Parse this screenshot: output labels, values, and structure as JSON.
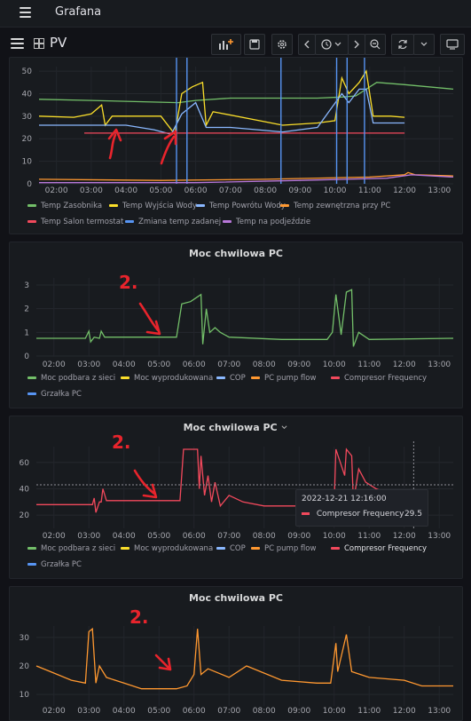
{
  "app": {
    "title": "Grafana"
  },
  "dashboard": {
    "title": "PV"
  },
  "toolbar": {
    "add_panel": "add-panel-icon",
    "save": "save-icon",
    "settings": "gear-icon",
    "time_back": "chevron-left-icon",
    "time_picker": "clock-icon",
    "time_fwd": "chevron-right-icon",
    "zoom_out": "zoom-out-icon",
    "refresh": "refresh-icon",
    "refresh_menu": "chevron-down-icon",
    "tv": "tv-icon"
  },
  "x_ticks": [
    "02:00",
    "03:00",
    "04:00",
    "05:00",
    "06:00",
    "07:00",
    "08:00",
    "09:00",
    "10:00",
    "11:00",
    "12:00",
    "13:00"
  ],
  "panel1": {
    "y_ticks": [
      "0",
      "10",
      "20",
      "30",
      "40",
      "50"
    ],
    "legend": [
      {
        "label": "Temp Zasobnika",
        "color": "#73bf69"
      },
      {
        "label": "Temp Wyjścia Wody",
        "color": "#fade2a"
      },
      {
        "label": "Temp Powrótu Wody",
        "color": "#8ab8ff"
      },
      {
        "label": "Temp zewnętrzna przy PC",
        "color": "#ff9830"
      },
      {
        "label": "Temp Salon termostat",
        "color": "#f2495c"
      },
      {
        "label": "Zmiana temp zadanej",
        "color": "#5794f2"
      },
      {
        "label": "Temp na podjeździe",
        "color": "#b877d9"
      }
    ]
  },
  "panel2": {
    "title": "Moc chwilowa PC",
    "y_ticks": [
      "0",
      "1",
      "2",
      "3"
    ],
    "legend": [
      {
        "label": "Moc podbara z sieci",
        "color": "#73bf69"
      },
      {
        "label": "Moc wyprodukowana",
        "color": "#fade2a"
      },
      {
        "label": "COP",
        "color": "#8ab8ff"
      },
      {
        "label": "PC pump flow",
        "color": "#ff9830"
      },
      {
        "label": "Compresor Frequency",
        "color": "#f2495c"
      },
      {
        "label": "Grzałka PC",
        "color": "#5794f2"
      }
    ]
  },
  "panel3": {
    "title": "Moc chwilowa PC",
    "title_menu_icon": "chevron-down-icon",
    "y_ticks": [
      "20",
      "40",
      "60"
    ],
    "legend": [
      {
        "label": "Moc podbara z sieci",
        "color": "#73bf69"
      },
      {
        "label": "Moc wyprodukowana",
        "color": "#fade2a"
      },
      {
        "label": "COP",
        "color": "#8ab8ff"
      },
      {
        "label": "PC pump flow",
        "color": "#ff9830"
      },
      {
        "label": "Compresor Frequency",
        "color": "#f2495c"
      },
      {
        "label": "Grzałka PC",
        "color": "#5794f2"
      }
    ],
    "tooltip": {
      "time": "2022-12-21 12:16:00",
      "series": "Compresor Frequency",
      "value": "29.5",
      "color": "#f2495c"
    }
  },
  "panel4": {
    "title": "Moc chwilowa PC",
    "y_ticks": [
      "10",
      "20",
      "30"
    ]
  },
  "annotations": {
    "note": "2."
  },
  "chart_data": [
    {
      "type": "line",
      "panel": "panel1",
      "ylim": [
        0,
        52
      ],
      "x": [
        "01:30",
        "13:30"
      ],
      "series": [
        {
          "name": "Temp Zasobnika",
          "color": "#73bf69",
          "points": [
            [
              1.5,
              37.5
            ],
            [
              3.0,
              37
            ],
            [
              5.5,
              36
            ],
            [
              6.0,
              37
            ],
            [
              7.0,
              38
            ],
            [
              8.0,
              38
            ],
            [
              9.5,
              38
            ],
            [
              10.2,
              38.5
            ],
            [
              10.6,
              39
            ],
            [
              11.2,
              45
            ],
            [
              12.0,
              44
            ],
            [
              13.4,
              42
            ]
          ]
        },
        {
          "name": "Temp Wyjścia Wody",
          "color": "#fade2a",
          "points": [
            [
              1.5,
              30
            ],
            [
              2.5,
              29.5
            ],
            [
              3.0,
              31
            ],
            [
              3.3,
              35
            ],
            [
              3.4,
              26
            ],
            [
              3.6,
              30
            ],
            [
              5.0,
              30
            ],
            [
              5.4,
              22
            ],
            [
              5.6,
              40
            ],
            [
              5.9,
              43
            ],
            [
              6.2,
              45
            ],
            [
              6.3,
              26
            ],
            [
              6.5,
              32
            ],
            [
              8.5,
              26
            ],
            [
              9.5,
              27
            ],
            [
              10.0,
              28
            ],
            [
              10.2,
              47
            ],
            [
              10.4,
              40
            ],
            [
              10.7,
              45
            ],
            [
              10.9,
              50
            ],
            [
              11.1,
              30
            ],
            [
              11.6,
              30
            ],
            [
              12.0,
              29.5
            ]
          ]
        },
        {
          "name": "Temp Powrótu Wody",
          "color": "#8ab8ff",
          "points": [
            [
              1.5,
              26
            ],
            [
              3.0,
              26
            ],
            [
              4.0,
              26
            ],
            [
              4.8,
              24
            ],
            [
              5.3,
              22
            ],
            [
              5.6,
              31
            ],
            [
              6.0,
              36
            ],
            [
              6.3,
              25
            ],
            [
              7.0,
              25
            ],
            [
              8.5,
              23
            ],
            [
              9.5,
              25
            ],
            [
              10.2,
              40
            ],
            [
              10.4,
              36
            ],
            [
              10.7,
              42
            ],
            [
              10.9,
              42
            ],
            [
              11.1,
              27
            ],
            [
              12.0,
              27
            ]
          ]
        },
        {
          "name": "Temp zewnętrzna przy PC",
          "color": "#ff9830",
          "points": [
            [
              1.5,
              2
            ],
            [
              5.0,
              1.5
            ],
            [
              8.0,
              2
            ],
            [
              11.0,
              3
            ],
            [
              12.0,
              4
            ],
            [
              12.1,
              5
            ],
            [
              12.3,
              4
            ],
            [
              13.4,
              3.5
            ]
          ]
        },
        {
          "name": "Temp Salon termostat",
          "color": "#f2495c",
          "points": [
            [
              2.8,
              22.5
            ],
            [
              12.0,
              22.5
            ]
          ]
        },
        {
          "name": "Zmiana temp zadanej",
          "color": "#5794f2",
          "spikes": [
            5.45,
            5.75,
            8.45,
            10.05,
            10.35,
            10.85
          ]
        },
        {
          "name": "Temp na podjeździe",
          "color": "#b877d9",
          "points": [
            [
              1.5,
              0.5
            ],
            [
              6.0,
              0.5
            ],
            [
              9.0,
              1.5
            ],
            [
              11.5,
              2.5
            ],
            [
              12.2,
              4
            ],
            [
              13.4,
              3
            ]
          ]
        }
      ]
    },
    {
      "type": "line",
      "panel": "panel2",
      "ylim": [
        0,
        3.3
      ],
      "series": [
        {
          "name": "Moc podbara z sieci",
          "color": "#73bf69",
          "points": [
            [
              1.5,
              0.75
            ],
            [
              2.9,
              0.75
            ],
            [
              3.0,
              1.05
            ],
            [
              3.05,
              0.6
            ],
            [
              3.15,
              0.8
            ],
            [
              3.3,
              0.75
            ],
            [
              3.35,
              1.05
            ],
            [
              3.45,
              0.8
            ],
            [
              5.5,
              0.8
            ],
            [
              5.65,
              2.2
            ],
            [
              5.9,
              2.3
            ],
            [
              6.1,
              2.5
            ],
            [
              6.2,
              2.6
            ],
            [
              6.25,
              0.5
            ],
            [
              6.35,
              2.0
            ],
            [
              6.45,
              1.0
            ],
            [
              6.6,
              1.2
            ],
            [
              6.75,
              1.0
            ],
            [
              7.0,
              0.8
            ],
            [
              8.5,
              0.7
            ],
            [
              9.8,
              0.7
            ],
            [
              9.95,
              1.0
            ],
            [
              10.05,
              2.6
            ],
            [
              10.2,
              0.9
            ],
            [
              10.35,
              2.7
            ],
            [
              10.5,
              2.8
            ],
            [
              10.55,
              0.4
            ],
            [
              10.7,
              1.0
            ],
            [
              11.0,
              0.7
            ],
            [
              13.4,
              0.75
            ]
          ]
        }
      ]
    },
    {
      "type": "line",
      "panel": "panel3",
      "ylim": [
        10,
        72
      ],
      "series": [
        {
          "name": "Compresor Frequency",
          "color": "#f2495c",
          "points": [
            [
              1.5,
              28
            ],
            [
              3.1,
              28
            ],
            [
              3.15,
              33
            ],
            [
              3.2,
              22
            ],
            [
              3.3,
              30
            ],
            [
              3.35,
              30
            ],
            [
              3.4,
              40
            ],
            [
              3.5,
              31
            ],
            [
              5.6,
              31
            ],
            [
              5.7,
              70
            ],
            [
              6.1,
              70
            ],
            [
              6.15,
              40
            ],
            [
              6.2,
              65
            ],
            [
              6.3,
              35
            ],
            [
              6.4,
              50
            ],
            [
              6.5,
              30
            ],
            [
              6.6,
              45
            ],
            [
              6.75,
              27
            ],
            [
              7.0,
              35
            ],
            [
              7.4,
              30
            ],
            [
              8.0,
              27
            ],
            [
              9.8,
              27
            ],
            [
              10.0,
              28
            ],
            [
              10.05,
              70
            ],
            [
              10.3,
              50
            ],
            [
              10.35,
              70
            ],
            [
              10.5,
              65
            ],
            [
              10.55,
              30
            ],
            [
              10.7,
              55
            ],
            [
              10.9,
              45
            ],
            [
              11.2,
              40
            ],
            [
              12.2,
              29.5
            ]
          ]
        }
      ]
    },
    {
      "type": "line",
      "panel": "panel4",
      "ylim": [
        6,
        34
      ],
      "series": [
        {
          "name": "PC pump flow",
          "color": "#ff9830",
          "points": [
            [
              1.5,
              20
            ],
            [
              1.9,
              18
            ],
            [
              2.5,
              15
            ],
            [
              2.9,
              14
            ],
            [
              3.0,
              32
            ],
            [
              3.1,
              33
            ],
            [
              3.2,
              14
            ],
            [
              3.3,
              20
            ],
            [
              3.5,
              16
            ],
            [
              4.0,
              14
            ],
            [
              4.5,
              12
            ],
            [
              5.5,
              12
            ],
            [
              5.8,
              13
            ],
            [
              6.0,
              17
            ],
            [
              6.1,
              33
            ],
            [
              6.2,
              17
            ],
            [
              6.4,
              19
            ],
            [
              7.0,
              16
            ],
            [
              7.5,
              20
            ],
            [
              8.5,
              15
            ],
            [
              9.5,
              14
            ],
            [
              9.9,
              14
            ],
            [
              10.05,
              28
            ],
            [
              10.1,
              18
            ],
            [
              10.35,
              31
            ],
            [
              10.5,
              18
            ],
            [
              11.0,
              16
            ],
            [
              12.0,
              15
            ],
            [
              12.5,
              13
            ],
            [
              13.4,
              13
            ]
          ]
        }
      ]
    }
  ]
}
